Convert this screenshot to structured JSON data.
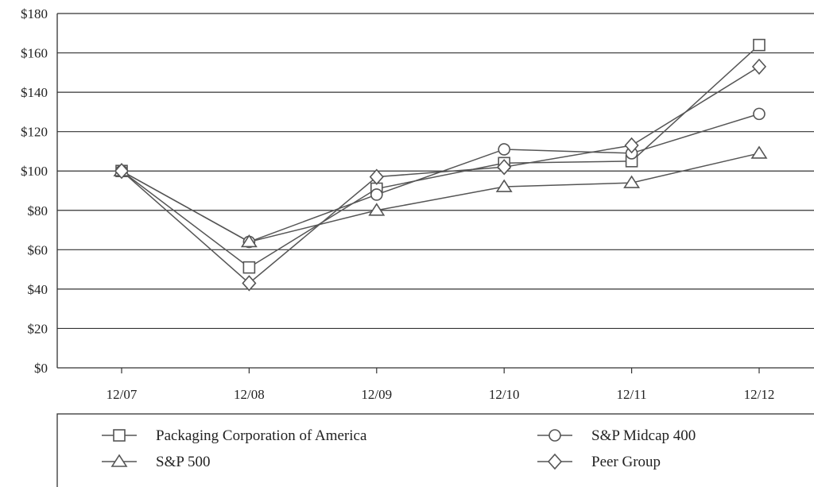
{
  "chart_data": {
    "type": "line",
    "title": "",
    "xlabel": "",
    "ylabel": "",
    "categories": [
      "12/07",
      "12/08",
      "12/09",
      "12/10",
      "12/11",
      "12/12"
    ],
    "ylim": [
      0,
      180
    ],
    "y_ticks": [
      0,
      20,
      40,
      60,
      80,
      100,
      120,
      140,
      160,
      180
    ],
    "y_tick_labels": [
      "$0",
      "$20",
      "$40",
      "$60",
      "$80",
      "$100",
      "$120",
      "$140",
      "$160",
      "$180"
    ],
    "grid": "horizontal",
    "legend_position": "bottom",
    "series": [
      {
        "name": "Packaging Corporation of America",
        "marker": "square",
        "values": [
          100,
          51,
          91,
          104,
          105,
          164
        ]
      },
      {
        "name": "S&P Midcap 400",
        "marker": "circle",
        "values": [
          100,
          64,
          88,
          111,
          109,
          129
        ]
      },
      {
        "name": "S&P 500",
        "marker": "triangle",
        "values": [
          100,
          64,
          80,
          92,
          94,
          109
        ]
      },
      {
        "name": "Peer Group",
        "marker": "diamond",
        "values": [
          100,
          43,
          97,
          102,
          113,
          153
        ]
      }
    ],
    "colors": {
      "line": "#555555",
      "grid": "#333333",
      "marker_fill": "#ffffff"
    }
  }
}
